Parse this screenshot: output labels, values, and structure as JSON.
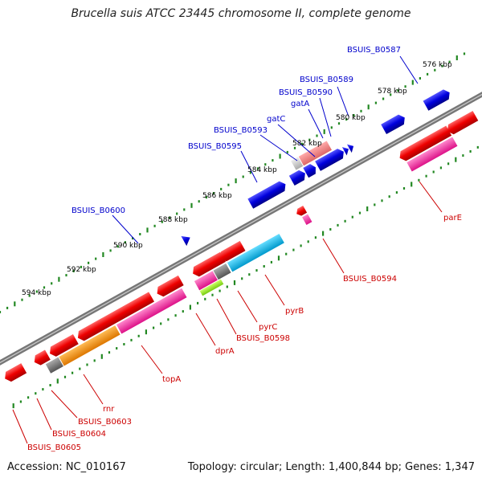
{
  "title": "Brucella suis ATCC 23445 chromosome II, complete genome",
  "footer": {
    "accession": "Accession: NC_010167",
    "topology": "Topology: circular; Length: 1,400,844 bp; Genes: 1,347"
  },
  "scale_labels": [
    {
      "label": "576 kbp",
      "kbp": 576
    },
    {
      "label": "578 kbp",
      "kbp": 578
    },
    {
      "label": "580 kbp",
      "kbp": 580
    },
    {
      "label": "582 kbp",
      "kbp": 582
    },
    {
      "label": "584 kbp",
      "kbp": 584
    },
    {
      "label": "586 kbp",
      "kbp": 586
    },
    {
      "label": "588 kbp",
      "kbp": 588
    },
    {
      "label": "590 kbp",
      "kbp": 590
    },
    {
      "label": "592 kbp",
      "kbp": 592
    },
    {
      "label": "594 kbp",
      "kbp": 594
    }
  ],
  "upper_gene_labels": [
    {
      "label": "BSUIS_B0587",
      "color": "#0000cc"
    },
    {
      "label": "BSUIS_B0589",
      "color": "#0000cc"
    },
    {
      "label": "BSUIS_B0590",
      "color": "#0000cc"
    },
    {
      "label": "gatA",
      "color": "#0000cc"
    },
    {
      "label": "gatC",
      "color": "#0000cc"
    },
    {
      "label": "BSUIS_B0593",
      "color": "#0000cc"
    },
    {
      "label": "BSUIS_B0595",
      "color": "#0000cc"
    },
    {
      "label": "BSUIS_B0600",
      "color": "#0000cc"
    }
  ],
  "lower_gene_labels": [
    {
      "label": "parE",
      "color": "#cc0000"
    },
    {
      "label": "BSUIS_B0594",
      "color": "#cc0000"
    },
    {
      "label": "pyrB",
      "color": "#cc0000"
    },
    {
      "label": "pyrC",
      "color": "#cc0000"
    },
    {
      "label": "BSUIS_B0598",
      "color": "#cc0000"
    },
    {
      "label": "dprA",
      "color": "#cc0000"
    },
    {
      "label": "topA",
      "color": "#cc0000"
    },
    {
      "label": "rnr",
      "color": "#cc0000"
    },
    {
      "label": "BSUIS_B0603",
      "color": "#cc0000"
    },
    {
      "label": "BSUIS_B0604",
      "color": "#cc0000"
    },
    {
      "label": "BSUIS_B0605",
      "color": "#cc0000"
    }
  ],
  "colors": {
    "forward_strand": "#0000dd",
    "reverse_strand": "#ee0000",
    "backbone": "#808080",
    "scale_dots": "#228822",
    "cog_pink": "#ff3399",
    "cog_cyan": "#00bbee",
    "cog_orange": "#ff9900",
    "cog_green": "#99ee22",
    "cog_gray": "#777777",
    "salmon": "#ee7777"
  }
}
